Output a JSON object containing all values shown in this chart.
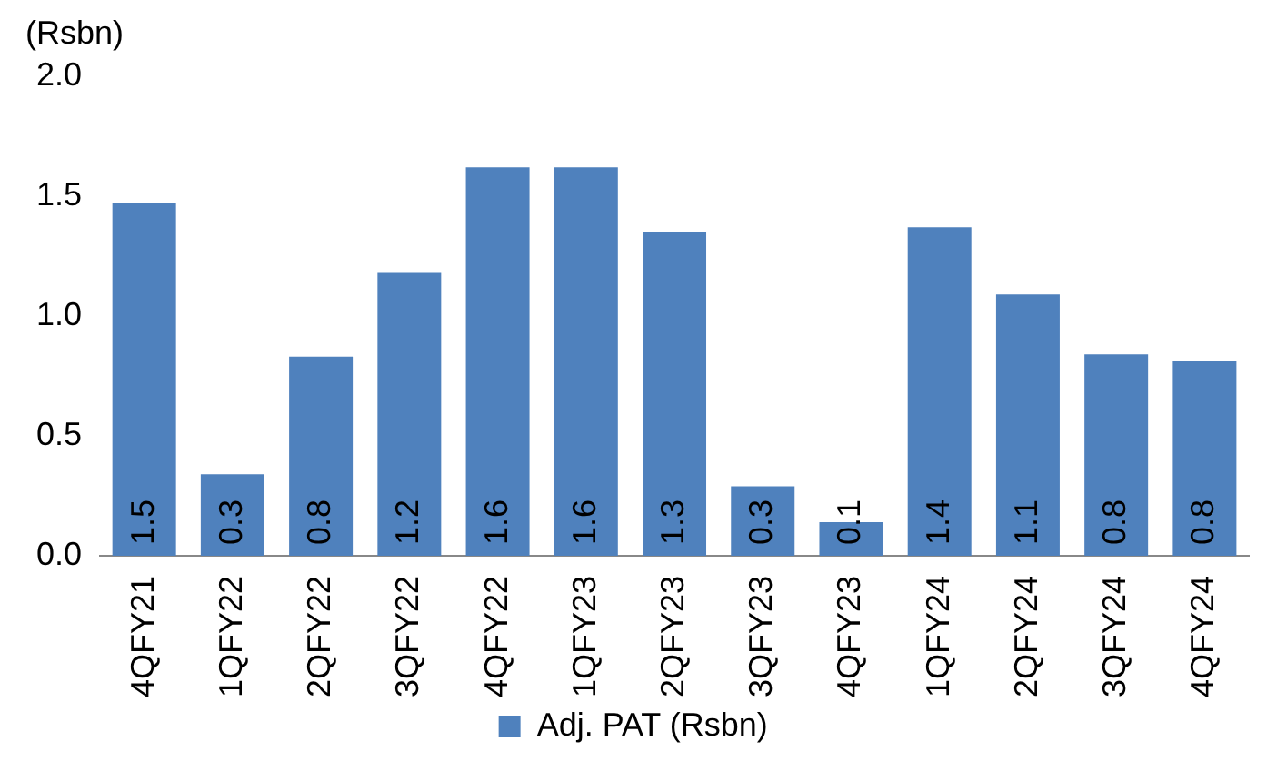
{
  "chart_data": {
    "type": "bar",
    "ylabel": "(Rsbn)",
    "categories": [
      "4QFY21",
      "1QFY22",
      "2QFY22",
      "3QFY22",
      "4QFY22",
      "1QFY23",
      "2QFY23",
      "3QFY23",
      "4QFY23",
      "1QFY24",
      "2QFY24",
      "3QFY24",
      "4QFY24"
    ],
    "series": [
      {
        "name": "Adj. PAT (Rsbn)",
        "color": "#4f81bd",
        "values": [
          1.47,
          0.34,
          0.83,
          1.18,
          1.62,
          1.62,
          1.35,
          0.29,
          0.14,
          1.37,
          1.09,
          0.84,
          0.81
        ],
        "value_labels": [
          "1.5",
          "0.3",
          "0.8",
          "1.2",
          "1.6",
          "1.6",
          "1.3",
          "0.3",
          "0.1",
          "1.4",
          "1.1",
          "0.8",
          "0.8"
        ]
      }
    ],
    "ylim": [
      0,
      2
    ],
    "yticks": [
      {
        "value": 0,
        "label": "0.0"
      },
      {
        "value": 0.5,
        "label": "0.5"
      },
      {
        "value": 1,
        "label": "1.0"
      },
      {
        "value": 1.5,
        "label": "1.5"
      },
      {
        "value": 2,
        "label": "2.0"
      }
    ],
    "grid": false,
    "legend": "bottom"
  }
}
